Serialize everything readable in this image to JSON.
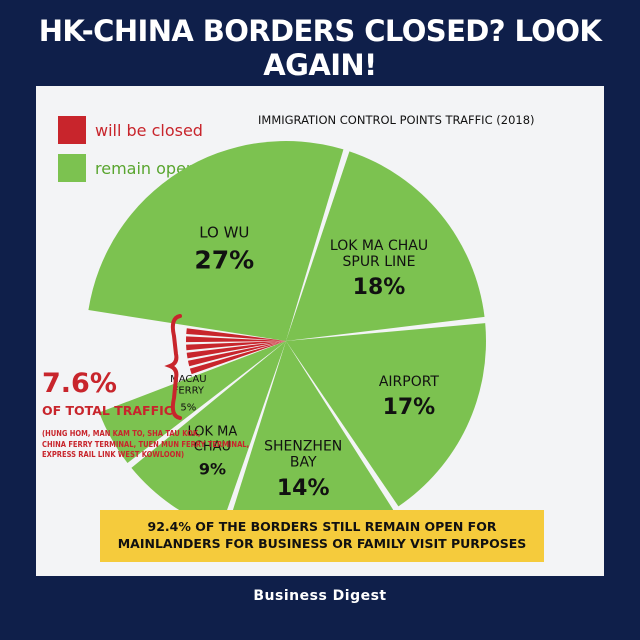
{
  "headline": "HK-CHINA BORDERS CLOSED? LOOK AGAIN!",
  "legend": {
    "closed_label": "will be closed",
    "open_label": "remain open",
    "closed_color": "#c8252c",
    "open_color": "#7cc250"
  },
  "chart_data": {
    "type": "pie",
    "title": "IMMIGRATION CONTROL POINTS TRAFFIC (2018)",
    "slices": [
      {
        "name": "LO WU",
        "value": 27,
        "label": "27%",
        "status": "open"
      },
      {
        "name": "LOK MA CHAU SPUR LINE",
        "value": 18,
        "label": "18%",
        "status": "open"
      },
      {
        "name": "AIRPORT",
        "value": 17,
        "label": "17%",
        "status": "open"
      },
      {
        "name": "SHENZHEN BAY",
        "value": 14,
        "label": "14%",
        "status": "open"
      },
      {
        "name": "LOK MA CHAU",
        "value": 9,
        "label": "9%",
        "status": "open"
      },
      {
        "name": "MACAU FERRY",
        "value": 5,
        "label": "5%",
        "status": "open"
      },
      {
        "name": "Closed control points",
        "value": 7.6,
        "label": "7.6%",
        "status": "closed"
      }
    ]
  },
  "closed_summary": {
    "percent": "7.6%",
    "label": "OF TOTAL TRAFFIC",
    "detail_line1": "(HUNG HOM, MAN KAM TO, SHA TAU KOK,",
    "detail_line2": "CHINA FERRY TERMINAL, TUEN MUN FERRY TERMINAL,",
    "detail_line3": "EXPRESS RAIL LINK WEST KOWLOON)"
  },
  "callout": {
    "line1": "92.4% OF THE BORDERS STILL REMAIN OPEN FOR",
    "line2": "MAINLANDERS FOR BUSINESS OR FAMILY VISIT PURPOSES"
  },
  "source": "Business Digest"
}
